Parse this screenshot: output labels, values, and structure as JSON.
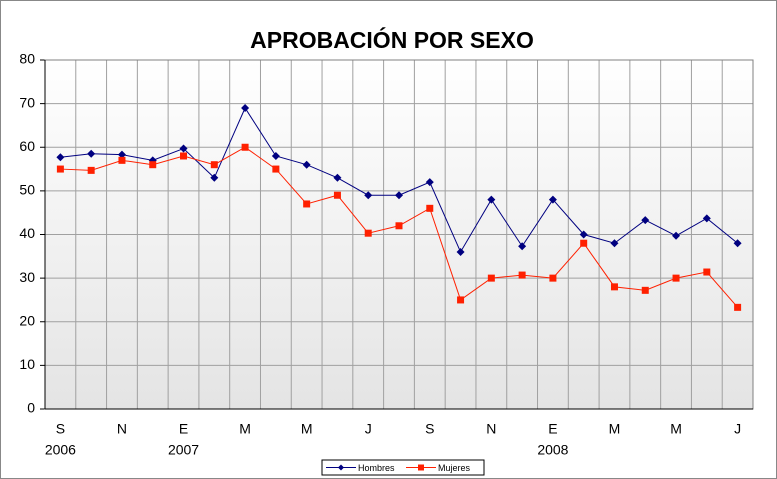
{
  "chart_data": {
    "type": "line",
    "title": "APROBACIÓN POR SEXO",
    "categories": [
      "S",
      null,
      "N",
      null,
      "E",
      null,
      "M",
      null,
      "M",
      null,
      "J",
      null,
      "S",
      null,
      "N",
      null,
      "E",
      null,
      "M",
      null,
      "M",
      null,
      "J"
    ],
    "years": [
      "2006",
      null,
      null,
      null,
      "2007",
      null,
      null,
      null,
      null,
      null,
      null,
      null,
      null,
      null,
      null,
      null,
      "2008",
      null,
      null,
      null,
      null,
      null,
      null
    ],
    "series": [
      {
        "name": "Hombres",
        "color": "#000080",
        "marker": "diamond",
        "values": [
          57.7,
          58.5,
          58.3,
          57,
          59.7,
          53,
          69,
          58,
          56,
          53,
          49,
          49,
          52,
          36,
          48,
          37.3,
          48,
          40,
          38,
          43.3,
          39.7,
          43.7,
          38
        ]
      },
      {
        "name": "Mujeres",
        "color": "#ff2000",
        "marker": "square",
        "values": [
          55,
          54.7,
          57,
          56,
          58,
          56,
          60,
          55,
          47,
          49,
          40.3,
          42,
          46,
          25,
          30,
          30.7,
          30,
          38,
          28,
          27.2,
          30,
          31.4,
          23.3
        ]
      }
    ],
    "ylim": [
      0,
      80
    ],
    "yticks": [
      0,
      10,
      20,
      30,
      40,
      50,
      60,
      70,
      80
    ],
    "grid": true,
    "legend": "bottom"
  }
}
